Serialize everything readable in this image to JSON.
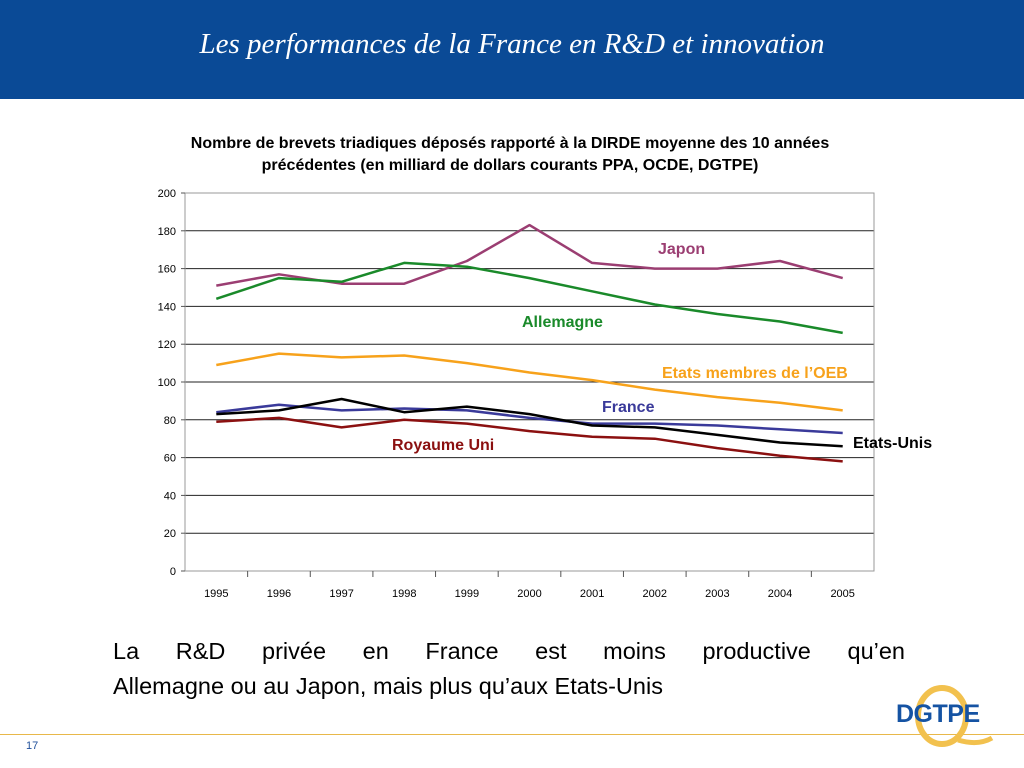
{
  "slide": {
    "title": "Les performances de la France en R&D et innovation",
    "caption_line1": "La R&D privée en France est moins productive qu’en",
    "caption_line2": "Allemagne ou au Japon, mais plus qu’aux Etats-Unis",
    "page_number": "17",
    "logo_text": "DGTPE"
  },
  "colors": {
    "header": "#0a4a96",
    "japon": "#9b3e72",
    "allemagne": "#1a8a2a",
    "oeb": "#f7a21b",
    "france": "#3a3a9a",
    "etats_unis": "#000000",
    "royaume_uni": "#8b1010"
  },
  "chart_data": {
    "type": "line",
    "title_line1": "Nombre de brevets triadiques déposés rapporté à la DIRDE moyenne des 10 années",
    "title_line2": "précédentes (en milliard de dollars courants PPA, OCDE, DGTPE)",
    "x": [
      "1995",
      "1996",
      "1997",
      "1998",
      "1999",
      "2000",
      "2001",
      "2002",
      "2003",
      "2004",
      "2005"
    ],
    "ylim": [
      0,
      200
    ],
    "yticks": [
      "0",
      "20",
      "40",
      "60",
      "80",
      "100",
      "120",
      "140",
      "160",
      "180",
      "200"
    ],
    "grid": true,
    "series": [
      {
        "name": "Japon",
        "color": "#9b3e72",
        "values": [
          151,
          157,
          152,
          152,
          164,
          183,
          163,
          160,
          160,
          164,
          155
        ]
      },
      {
        "name": "Allemagne",
        "color": "#1a8a2a",
        "values": [
          144,
          155,
          153,
          163,
          161,
          155,
          148,
          141,
          136,
          132,
          126
        ]
      },
      {
        "name": "Etats membres de l’OEB",
        "color": "#f7a21b",
        "values": [
          109,
          115,
          113,
          114,
          110,
          105,
          101,
          96,
          92,
          89,
          85
        ]
      },
      {
        "name": "France",
        "color": "#3a3a9a",
        "values": [
          84,
          88,
          85,
          86,
          85,
          81,
          78,
          78,
          77,
          75,
          73
        ]
      },
      {
        "name": "Etats-Unis",
        "color": "#000000",
        "values": [
          83,
          85,
          91,
          84,
          87,
          83,
          77,
          76,
          72,
          68,
          66
        ]
      },
      {
        "name": "Royaume Uni",
        "color": "#8b1010",
        "values": [
          79,
          81,
          76,
          80,
          78,
          74,
          71,
          70,
          65,
          61,
          58
        ]
      }
    ]
  }
}
